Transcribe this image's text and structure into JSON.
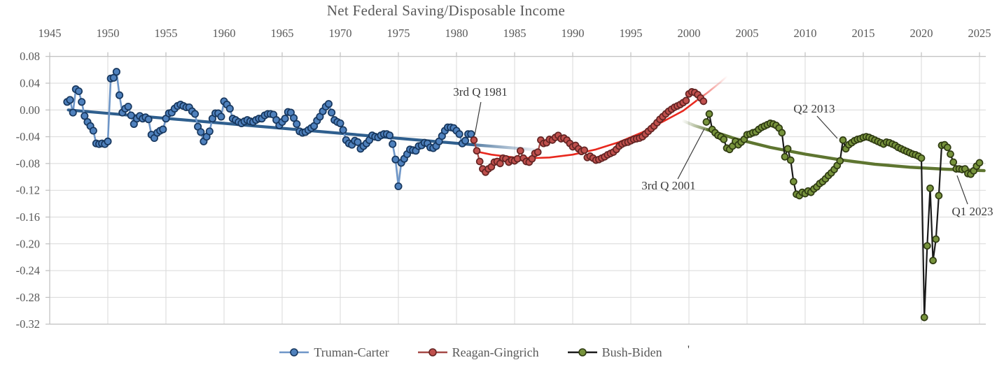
{
  "title": "Net Federal Saving/Disposable Income",
  "legend": {
    "items": [
      {
        "label": "Truman-Carter",
        "line_color": "#6e96c8",
        "marker_fill": "#4f81bd",
        "marker_stroke": "#17375e"
      },
      {
        "label": "Reagan-Gingrich",
        "line_color": "#a54845",
        "marker_fill": "#c0504d",
        "marker_stroke": "#632423"
      },
      {
        "label": "Bush-Biden",
        "line_color": "#1a1a1a",
        "marker_fill": "#77933c",
        "marker_stroke": "#2f3b12"
      }
    ],
    "extra_mark": "'"
  },
  "chart_data": {
    "type": "line",
    "title": "Net Federal Saving/Disposable Income",
    "frequency": "quarterly",
    "grid": true,
    "legend_position": "bottom",
    "x_axis": {
      "position": "top",
      "min": 1945,
      "max": 2025,
      "ticks": [
        1945,
        1950,
        1955,
        1960,
        1965,
        1970,
        1975,
        1980,
        1985,
        1990,
        1995,
        2000,
        2005,
        2010,
        2015,
        2020,
        2025
      ]
    },
    "y_axis": {
      "min": -0.32,
      "max": 0.08,
      "ticks": [
        0.08,
        0.04,
        0.0,
        -0.04,
        -0.08,
        -0.12,
        -0.16,
        -0.2,
        -0.24,
        -0.28,
        -0.32
      ],
      "tick_labels": [
        "0.08",
        "0.04",
        "0.00",
        "-0.04",
        "-0.08",
        "-0.12",
        "-0.16",
        "-0.20",
        "-0.24",
        "-0.28",
        "-0.32"
      ]
    },
    "series": [
      {
        "name": "Truman-Carter",
        "start_year": 1946,
        "start_quarter": 3,
        "line_color": "#6e96c8",
        "line_width": 2.6,
        "marker_fill": "#4f81bd",
        "marker_stroke": "#17375e",
        "marker_radius": 4.7,
        "values": [
          0.012,
          0.015,
          -0.004,
          0.031,
          0.028,
          0.012,
          -0.009,
          -0.018,
          -0.024,
          -0.031,
          -0.05,
          -0.051,
          -0.05,
          -0.051,
          -0.047,
          0.047,
          0.048,
          0.057,
          0.022,
          -0.004,
          0.002,
          0.005,
          -0.008,
          -0.021,
          -0.013,
          -0.009,
          -0.013,
          -0.011,
          -0.014,
          -0.037,
          -0.042,
          -0.034,
          -0.031,
          -0.029,
          -0.013,
          -0.005,
          -0.004,
          0.002,
          0.006,
          0.008,
          0.006,
          0.004,
          0.004,
          -0.002,
          -0.006,
          -0.025,
          -0.033,
          -0.047,
          -0.04,
          -0.032,
          -0.013,
          -0.005,
          -0.005,
          -0.01,
          0.013,
          0.008,
          0.002,
          -0.013,
          -0.015,
          -0.018,
          -0.02,
          -0.017,
          -0.015,
          -0.017,
          -0.018,
          -0.015,
          -0.013,
          -0.013,
          -0.008,
          -0.006,
          -0.006,
          -0.007,
          -0.015,
          -0.023,
          -0.018,
          -0.013,
          -0.003,
          -0.004,
          -0.012,
          -0.021,
          -0.032,
          -0.034,
          -0.033,
          -0.03,
          -0.027,
          -0.024,
          -0.016,
          -0.01,
          -0.002,
          0.005,
          0.009,
          -0.004,
          -0.015,
          -0.018,
          -0.02,
          -0.03,
          -0.045,
          -0.05,
          -0.052,
          -0.046,
          -0.048,
          -0.058,
          -0.054,
          -0.05,
          -0.045,
          -0.038,
          -0.04,
          -0.041,
          -0.038,
          -0.036,
          -0.036,
          -0.038,
          -0.051,
          -0.074,
          -0.114,
          -0.079,
          -0.073,
          -0.066,
          -0.059,
          -0.06,
          -0.061,
          -0.054,
          -0.053,
          -0.049,
          -0.05,
          -0.056,
          -0.057,
          -0.054,
          -0.047,
          -0.039,
          -0.031,
          -0.026,
          -0.026,
          -0.027,
          -0.031,
          -0.036,
          -0.05,
          -0.046,
          -0.036,
          -0.036
        ]
      },
      {
        "name": "Reagan-Gingrich",
        "start_year": 1981,
        "start_quarter": 3,
        "line_color": "#a54845",
        "line_width": 2.2,
        "marker_fill": "#c0504d",
        "marker_stroke": "#632423",
        "marker_radius": 4.5,
        "values": [
          -0.045,
          -0.061,
          -0.077,
          -0.088,
          -0.093,
          -0.088,
          -0.085,
          -0.078,
          -0.077,
          -0.08,
          -0.072,
          -0.073,
          -0.078,
          -0.075,
          -0.076,
          -0.073,
          -0.061,
          -0.072,
          -0.077,
          -0.078,
          -0.073,
          -0.065,
          -0.063,
          -0.045,
          -0.05,
          -0.049,
          -0.044,
          -0.045,
          -0.041,
          -0.038,
          -0.043,
          -0.042,
          -0.045,
          -0.05,
          -0.055,
          -0.053,
          -0.058,
          -0.062,
          -0.06,
          -0.071,
          -0.069,
          -0.072,
          -0.075,
          -0.074,
          -0.072,
          -0.07,
          -0.067,
          -0.065,
          -0.063,
          -0.059,
          -0.054,
          -0.051,
          -0.049,
          -0.048,
          -0.046,
          -0.044,
          -0.043,
          -0.042,
          -0.04,
          -0.036,
          -0.032,
          -0.028,
          -0.024,
          -0.019,
          -0.014,
          -0.01,
          -0.006,
          -0.002,
          0.001,
          0.004,
          0.006,
          0.008,
          0.011,
          0.014,
          0.024,
          0.027,
          0.026,
          0.023,
          0.018,
          0.013
        ]
      },
      {
        "name": "Bush-Biden",
        "start_year": 2001,
        "start_quarter": 3,
        "line_color": "#1a1a1a",
        "line_width": 2.2,
        "marker_fill": "#77933c",
        "marker_stroke": "#2f3b12",
        "marker_radius": 4.5,
        "values": [
          -0.018,
          -0.006,
          -0.029,
          -0.034,
          -0.038,
          -0.04,
          -0.044,
          -0.057,
          -0.059,
          -0.054,
          -0.047,
          -0.052,
          -0.048,
          -0.044,
          -0.037,
          -0.036,
          -0.034,
          -0.033,
          -0.029,
          -0.026,
          -0.024,
          -0.022,
          -0.02,
          -0.021,
          -0.023,
          -0.027,
          -0.034,
          -0.07,
          -0.058,
          -0.075,
          -0.107,
          -0.126,
          -0.128,
          -0.123,
          -0.125,
          -0.121,
          -0.123,
          -0.118,
          -0.115,
          -0.11,
          -0.107,
          -0.103,
          -0.098,
          -0.094,
          -0.089,
          -0.083,
          -0.076,
          -0.045,
          -0.058,
          -0.052,
          -0.049,
          -0.046,
          -0.044,
          -0.043,
          -0.041,
          -0.04,
          -0.041,
          -0.043,
          -0.045,
          -0.047,
          -0.049,
          -0.051,
          -0.048,
          -0.049,
          -0.051,
          -0.053,
          -0.056,
          -0.058,
          -0.06,
          -0.062,
          -0.064,
          -0.066,
          -0.067,
          -0.069,
          -0.072,
          -0.31,
          -0.203,
          -0.117,
          -0.225,
          -0.193,
          -0.128,
          -0.053,
          -0.052,
          -0.056,
          -0.066,
          -0.078,
          -0.088,
          -0.088,
          -0.089,
          -0.088,
          -0.095,
          -0.096,
          -0.091,
          -0.084,
          -0.079
        ]
      }
    ],
    "trend_lines": [
      {
        "name": "Truman-Carter trend",
        "color": "#2f5f8e",
        "width": 4.2,
        "points": [
          [
            1946.6,
            0.0
          ],
          [
            1981.5,
            -0.052
          ]
        ],
        "fade_extension": [
          [
            1981.5,
            -0.052
          ],
          [
            1987.5,
            -0.0605
          ]
        ],
        "fade_direction": "out"
      },
      {
        "name": "Reagan-Gingrich trend",
        "color": "#e8281e",
        "width": 2.6,
        "points": [
          [
            1981.5,
            -0.0613
          ],
          [
            1983,
            -0.0667
          ],
          [
            1985,
            -0.071
          ],
          [
            1986.5,
            -0.072
          ],
          [
            1988,
            -0.071
          ],
          [
            1990,
            -0.0667
          ],
          [
            1992,
            -0.059
          ],
          [
            1994,
            -0.0479
          ],
          [
            1996,
            -0.0333
          ],
          [
            1998,
            -0.0153
          ],
          [
            1999.5,
            -0.0013
          ],
          [
            2000.6,
            0.0133
          ]
        ],
        "fade_extension": [
          [
            2000.6,
            0.0133
          ],
          [
            2001.6,
            0.0259
          ],
          [
            2002.6,
            0.0399
          ],
          [
            2003.3,
            0.0505
          ]
        ],
        "fade_direction": "out"
      },
      {
        "name": "Bush-Biden trend",
        "color": "#5e7530",
        "width": 4.4,
        "points": [
          [
            2001.6,
            -0.0295
          ],
          [
            2004,
            -0.043
          ],
          [
            2007,
            -0.056
          ],
          [
            2010,
            -0.066
          ],
          [
            2013,
            -0.0745
          ],
          [
            2016,
            -0.081
          ],
          [
            2019,
            -0.0855
          ],
          [
            2022,
            -0.0885
          ],
          [
            2025.4,
            -0.0907
          ]
        ],
        "fade_extension": [
          [
            1999.4,
            -0.0155
          ],
          [
            2000.5,
            -0.0235
          ],
          [
            2001.6,
            -0.0295
          ]
        ],
        "fade_direction": "in"
      }
    ],
    "annotations": [
      {
        "text": "3rd Q 1981",
        "label_at": [
          1982.05,
          0.0275
        ],
        "arrow_from": [
          1982.1,
          0.0118
        ],
        "arrow_to": [
          1981.57,
          -0.0373
        ]
      },
      {
        "text": "3rd Q 2001",
        "label_at": [
          1998.25,
          -0.1125
        ],
        "arrow_from": [
          1999.04,
          -0.1031
        ],
        "arrow_to": [
          2001.33,
          -0.0279
        ]
      },
      {
        "text": "Q2 2013",
        "label_at": [
          2010.78,
          0.0024
        ],
        "arrow_from": [
          2011.02,
          -0.0091
        ],
        "arrow_to": [
          2012.77,
          -0.0425
        ]
      },
      {
        "text": "Q1 2023",
        "label_at": [
          2024.4,
          -0.1511
        ],
        "arrow_from": [
          2023.98,
          -0.1407
        ],
        "arrow_to": [
          2023.07,
          -0.0979
        ]
      }
    ],
    "colors": {
      "grid": "#d9d9d9",
      "axis_border": "#bfbfbf",
      "tick_label": "#595959",
      "annotation_text": "#3a3a3a",
      "title": "#595959"
    }
  }
}
